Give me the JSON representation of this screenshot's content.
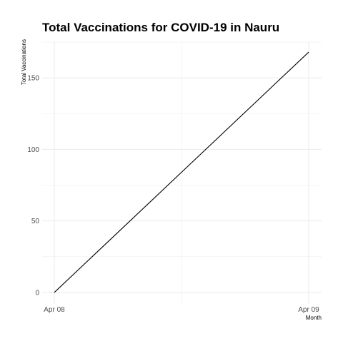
{
  "chart_data": {
    "type": "line",
    "title": "Total Vaccinations for COVID-19 in Nauru",
    "xlabel": "Month",
    "ylabel": "Total Vaccinations",
    "x": [
      "Apr 08",
      "Apr 09"
    ],
    "x_ticks": [
      "Apr 08",
      "Apr 09"
    ],
    "y_ticks": [
      0,
      50,
      100,
      150
    ],
    "ylim": [
      -8,
      175
    ],
    "series": [
      {
        "values": [
          0,
          168
        ]
      }
    ],
    "grid": true,
    "legend": "none",
    "colors": {
      "line": "#000000",
      "grid": "#ebebeb",
      "tick_text": "#4d4d4d",
      "title": "#000000"
    }
  }
}
